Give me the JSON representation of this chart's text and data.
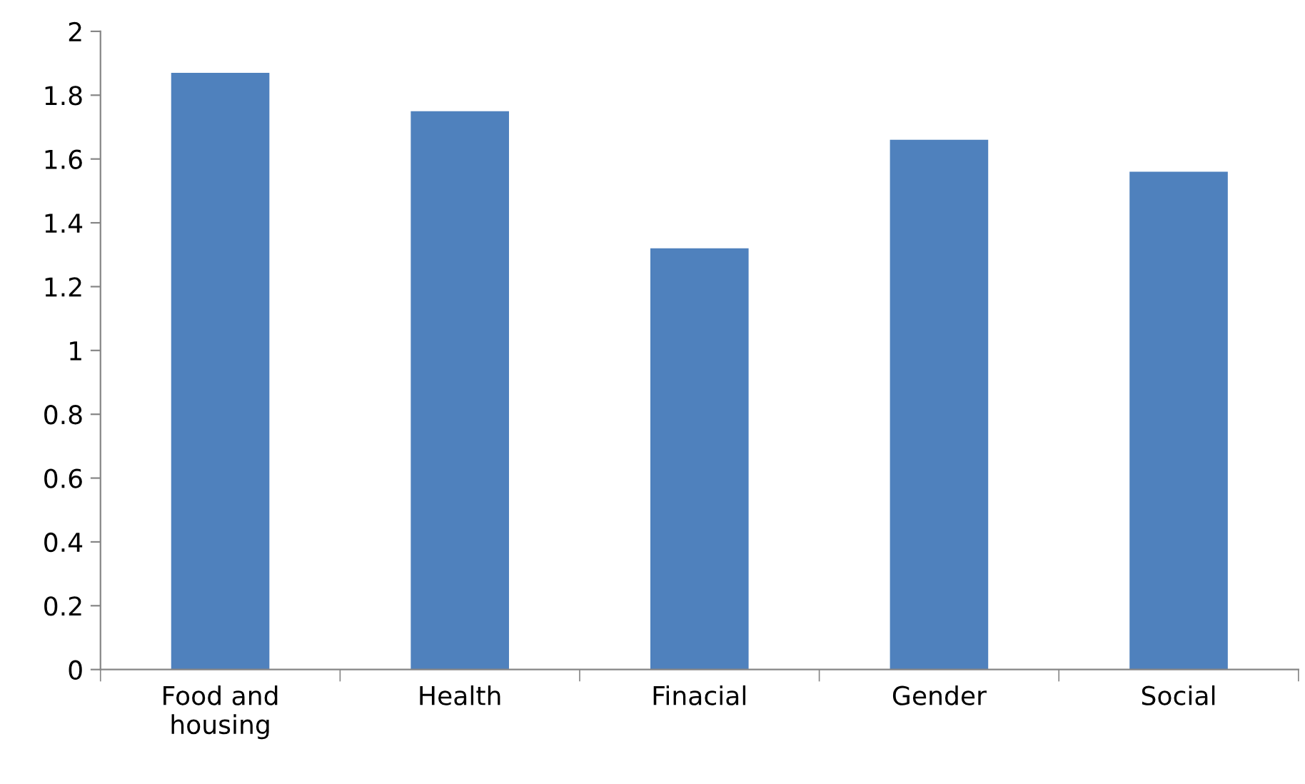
{
  "chart_data": {
    "type": "bar",
    "categories": [
      "Food and\nhousing",
      "Health",
      "Finacial",
      "Gender",
      "Social"
    ],
    "values": [
      1.87,
      1.75,
      1.32,
      1.66,
      1.56
    ],
    "color": "#4f81bd",
    "ylim": [
      0,
      2
    ],
    "yticks": [
      0,
      {
        "value": 0.2,
        "label": "0.2"
      },
      {
        "value": 0.4,
        "label": "0.4"
      },
      {
        "value": 0.6,
        "label": "0.6"
      },
      {
        "value": 0.8,
        "label": "0.8"
      },
      1,
      {
        "value": 1.2,
        "label": "1.2"
      },
      {
        "value": 1.4,
        "label": "1.4"
      },
      {
        "value": 1.6,
        "label": "1.6"
      },
      {
        "value": 1.8,
        "label": "1.8"
      },
      2
    ],
    "grid": false,
    "legend": false
  }
}
